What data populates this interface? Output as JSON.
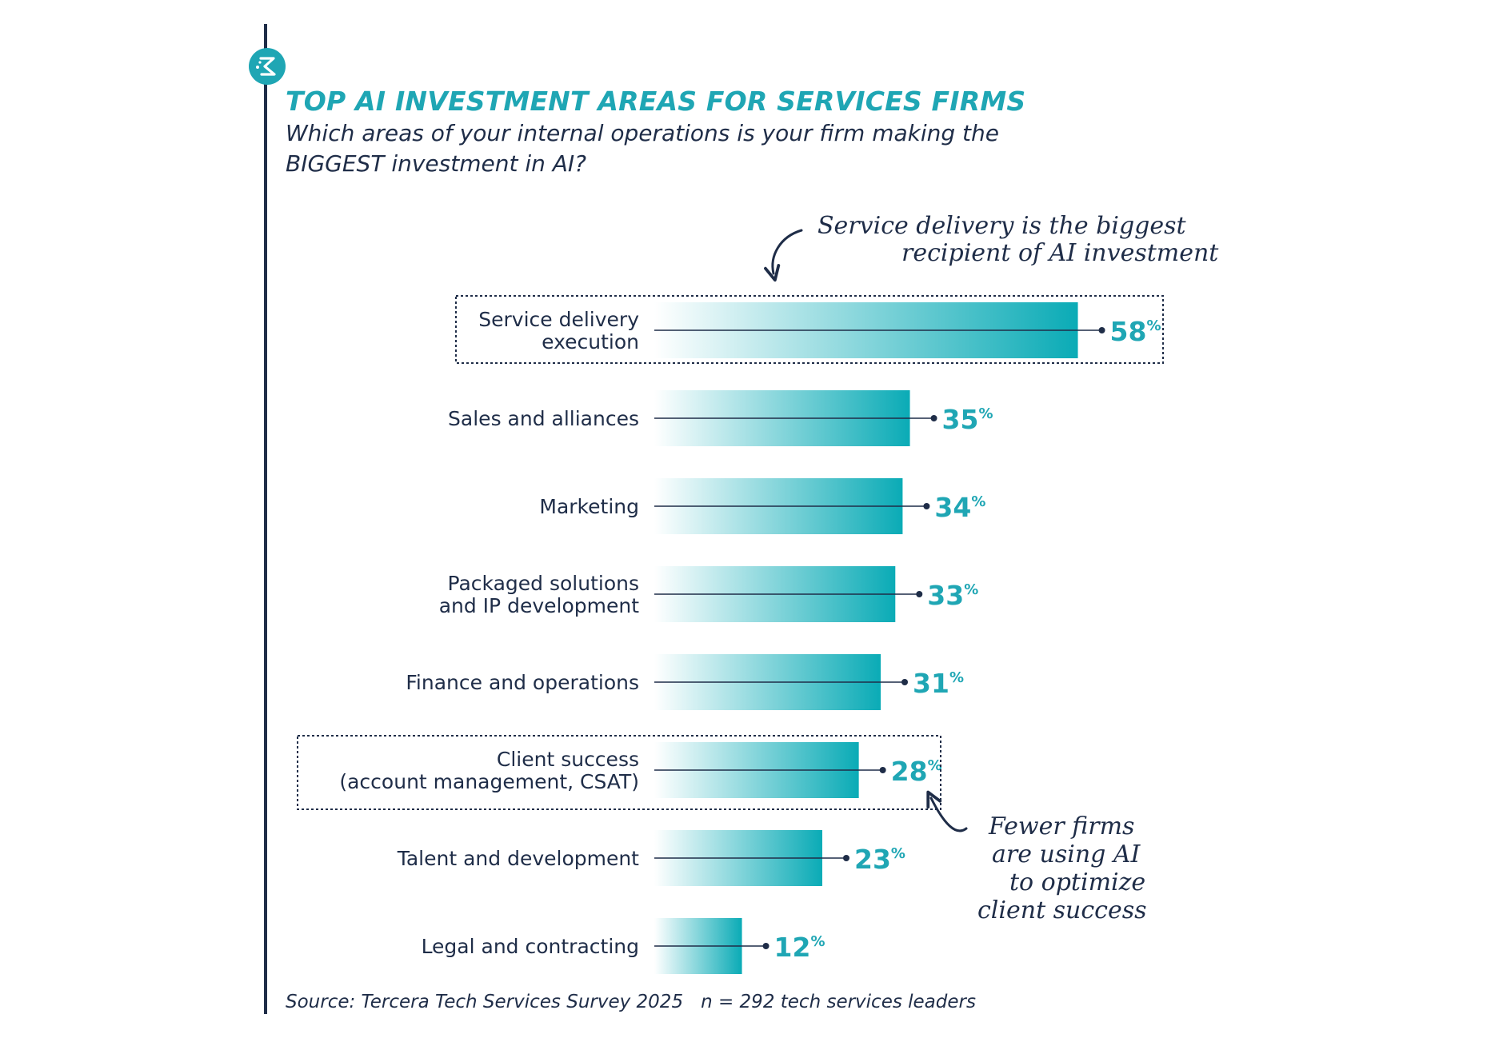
{
  "title": "TOP AI INVESTMENT AREAS FOR SERVICES FIRMS",
  "subtitle": "Which areas of your internal operations is your firm making the BIGGEST investment in AI?",
  "source": "Source: Tercera Tech Services Survey 2025",
  "sample": "n = 292 tech services leaders",
  "logo_icon": "tercera-spark-logo-icon",
  "colors": {
    "accent": "#1fa6b4",
    "bar_end": "#0aabb6",
    "text": "#1f2d48"
  },
  "chart_data": {
    "type": "bar",
    "orientation": "horizontal",
    "value_suffix": "%",
    "categories": [
      [
        "Service delivery",
        "execution"
      ],
      [
        "Sales and alliances"
      ],
      [
        "Marketing"
      ],
      [
        "Packaged solutions",
        "and IP development"
      ],
      [
        "Finance and operations"
      ],
      [
        "Client success",
        "(account management, CSAT)"
      ],
      [
        "Talent and development"
      ],
      [
        "Legal and contracting"
      ]
    ],
    "values": [
      58,
      35,
      34,
      33,
      31,
      28,
      23,
      12
    ],
    "highlighted": [
      0,
      5
    ],
    "annotations": [
      {
        "target": 0,
        "lines": [
          "Service delivery is the biggest",
          "recipient of AI investment"
        ]
      },
      {
        "target": 5,
        "lines": [
          "Fewer firms",
          "are using AI",
          "to optimize",
          "client success"
        ]
      }
    ]
  }
}
